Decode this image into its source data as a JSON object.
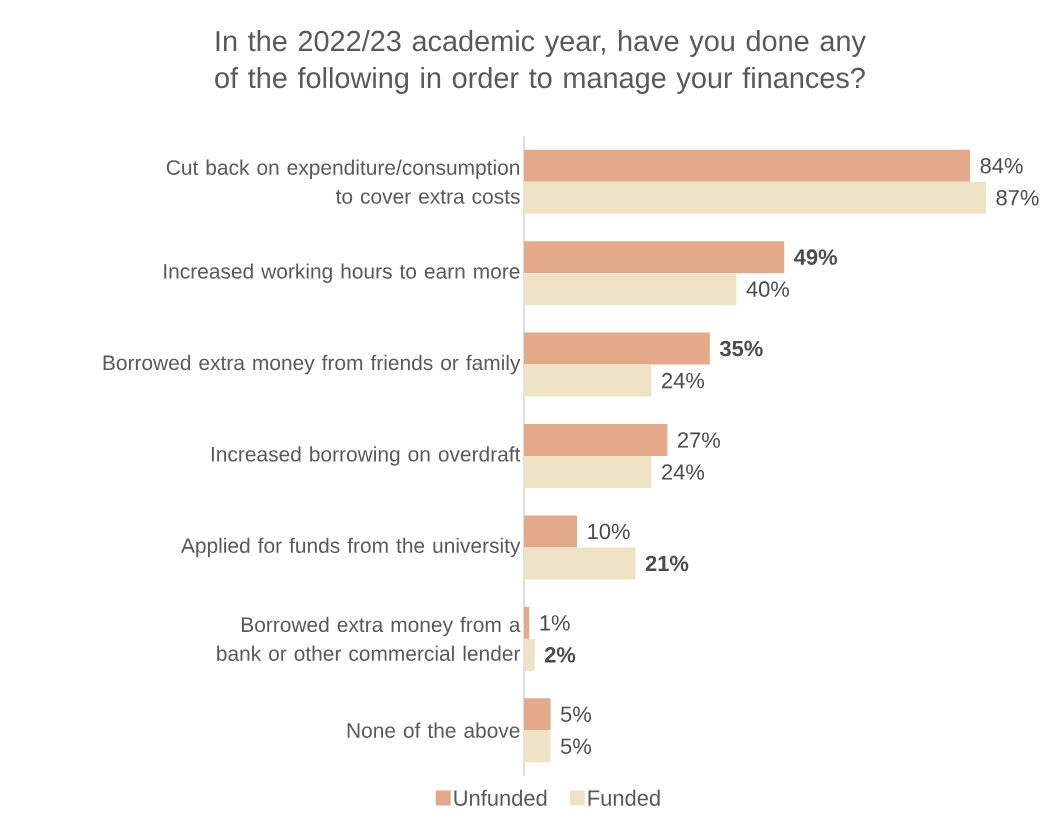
{
  "chart_data": {
    "type": "bar",
    "orientation": "horizontal",
    "title": "In the 2022/23 academic year, have you done any of the following in order to manage your finances?",
    "categories": [
      "Cut back on expenditure/consumption to cover extra costs",
      "Increased working hours to earn more",
      "Borrowed extra money from friends or family",
      "Increased borrowing on overdraft",
      "Applied for funds from the university",
      "Borrowed extra money from a bank or other commercial lender",
      "None of the above"
    ],
    "series": [
      {
        "name": "Unfunded",
        "color": "#e3aa8a",
        "values": [
          84,
          49,
          35,
          27,
          10,
          1,
          5
        ],
        "value_labels": [
          "84%",
          "**49%**",
          "**35%**",
          "27%",
          "10%",
          "1%",
          "5%"
        ]
      },
      {
        "name": "Funded",
        "color": "#efe3c6",
        "values": [
          87,
          40,
          24,
          24,
          21,
          2,
          5
        ],
        "value_labels": [
          "87%",
          "40%",
          "24%",
          "24%",
          "**21%**",
          "**2%**",
          "5%"
        ]
      }
    ],
    "legend": "bottom",
    "tick_labels": "y"
  }
}
